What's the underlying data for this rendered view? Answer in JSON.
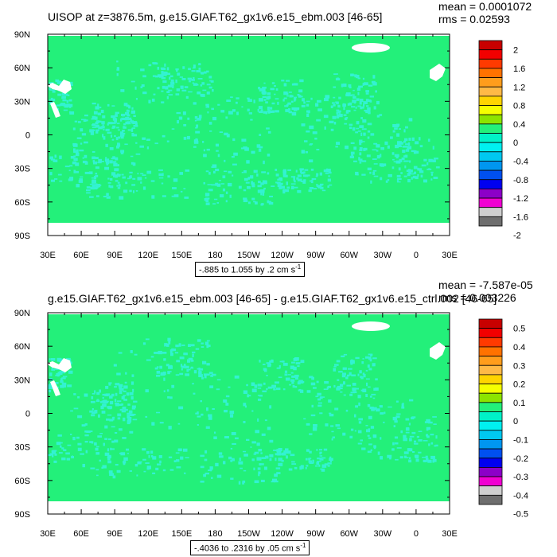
{
  "panels": [
    {
      "title": "UISOP at z=3876.5m, g.e15.GIAF.T62_gx1v6.e15_ebm.003 [46-65]",
      "mean": "mean = 0.0001072",
      "rms": "rms = 0.02593",
      "range": "-.885 to 1.055 by .2 cm s",
      "range_unit_exp": "-1",
      "colorbar_labels": [
        "2",
        "1.6",
        "1.2",
        "0.8",
        "0.4",
        "0",
        "-0.4",
        "-0.8",
        "-1.2",
        "-1.6",
        "-2"
      ]
    },
    {
      "title": "g.e15.GIAF.T62_gx1v6.e15_ebm.003 [46-65] - g.e15.GIAF.T62_gx1v6.e15_ctrl.002 [46-65]",
      "mean": "mean = -7.587e-05",
      "rms": "rms = 0.003226",
      "range": "-.4036 to .2316 by .05 cm s",
      "range_unit_exp": "-1",
      "colorbar_labels": [
        "0.5",
        "0.4",
        "0.3",
        "0.2",
        "0.1",
        "0",
        "-0.1",
        "-0.2",
        "-0.3",
        "-0.4",
        "-0.5"
      ]
    }
  ],
  "x_ticks": [
    "30E",
    "60E",
    "90E",
    "120E",
    "150E",
    "180",
    "150W",
    "120W",
    "90W",
    "60W",
    "30W",
    "0",
    "30E"
  ],
  "y_ticks": [
    "90N",
    "60N",
    "30N",
    "0",
    "30S",
    "60S",
    "90S"
  ],
  "colors": {
    "field_base": "#23f07a",
    "field_anomaly": "#33f2d2",
    "colorbar": [
      "#c80000",
      "#f20000",
      "#ff3a00",
      "#ff7200",
      "#ff9d1c",
      "#ffb946",
      "#ffd400",
      "#f5ff00",
      "#8ce400",
      "#23f07a",
      "#00f2c8",
      "#00f0f0",
      "#00c8f0",
      "#0096f0",
      "#0050f0",
      "#0000f0",
      "#8c00c8",
      "#f000d2",
      "#cfcfcf",
      "#6e6e6e"
    ]
  }
}
